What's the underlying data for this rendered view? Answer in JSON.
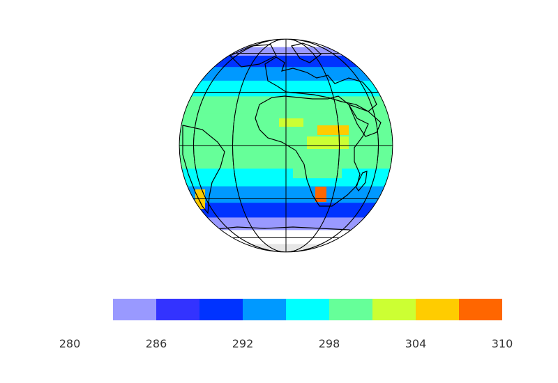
{
  "map": {
    "projection": "orthographic",
    "center": "Africa / Atlantic Ocean",
    "variable_units_hint": "",
    "graticule": "every 30 degrees",
    "land_outline_color": "#000000",
    "missing_value_color": "#e6e6e6"
  },
  "colorbar": {
    "orientation": "horizontal",
    "placement": "bottom",
    "levels": [
      280,
      283,
      286,
      289,
      292,
      295,
      298,
      301,
      304,
      307,
      310
    ],
    "colors": [
      "#ffffff",
      "#9999ff",
      "#3333ff",
      "#0033ff",
      "#0099ff",
      "#00ffff",
      "#66ff99",
      "#ccff33",
      "#ffcc00",
      "#ff6600"
    ],
    "tick_labels": [
      "280",
      "286",
      "292",
      "298",
      "304",
      "310"
    ]
  },
  "chart_data": {
    "type": "heatmap",
    "title": "",
    "xlabel": "",
    "ylabel": "",
    "value_range": [
      280,
      310
    ],
    "zonal_bands_by_latitude": [
      {
        "lat": 75,
        "value": 282
      },
      {
        "lat": 60,
        "value": 284
      },
      {
        "lat": 50,
        "value": 289
      },
      {
        "lat": 40,
        "value": 293
      },
      {
        "lat": 30,
        "value": 296
      },
      {
        "lat": 20,
        "value": 299
      },
      {
        "lat": 10,
        "value": 300
      },
      {
        "lat": 0,
        "value": 300
      },
      {
        "lat": -10,
        "value": 299
      },
      {
        "lat": -20,
        "value": 297
      },
      {
        "lat": -30,
        "value": 293
      },
      {
        "lat": -40,
        "value": 289
      },
      {
        "lat": -50,
        "value": 285
      },
      {
        "lat": -60,
        "value": 282
      }
    ]
  }
}
